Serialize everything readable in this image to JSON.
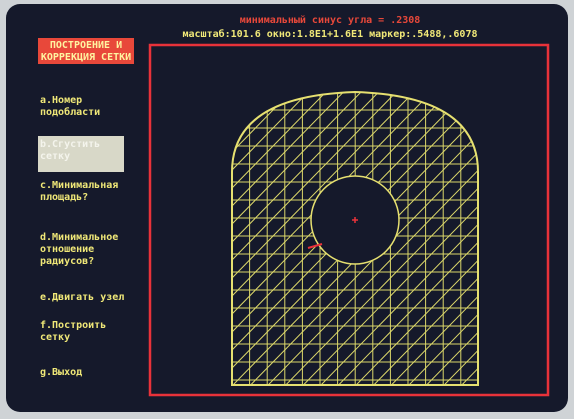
{
  "header": {
    "line1": "минимальный синус угла = .2308",
    "line2": "масштаб:101.6 окно:1.8Е1+1.6Е1 маркер:.5488,.6078"
  },
  "menu": {
    "title": [
      "ПОСТРОЕНИЕ И",
      "КОРРЕКЦИЯ СЕТКИ"
    ],
    "items": [
      [
        "a.Номер",
        "подобласти"
      ],
      [
        "b.Сгустить",
        "сетку"
      ],
      [
        "c.Минимальная",
        "площадь?"
      ],
      [
        "d.Минимальное",
        "отношение",
        "радиусов?"
      ],
      [
        "e.Двигать узел"
      ],
      [
        "f.Построить",
        "сетку"
      ],
      [
        "g.Выход"
      ]
    ]
  }
}
